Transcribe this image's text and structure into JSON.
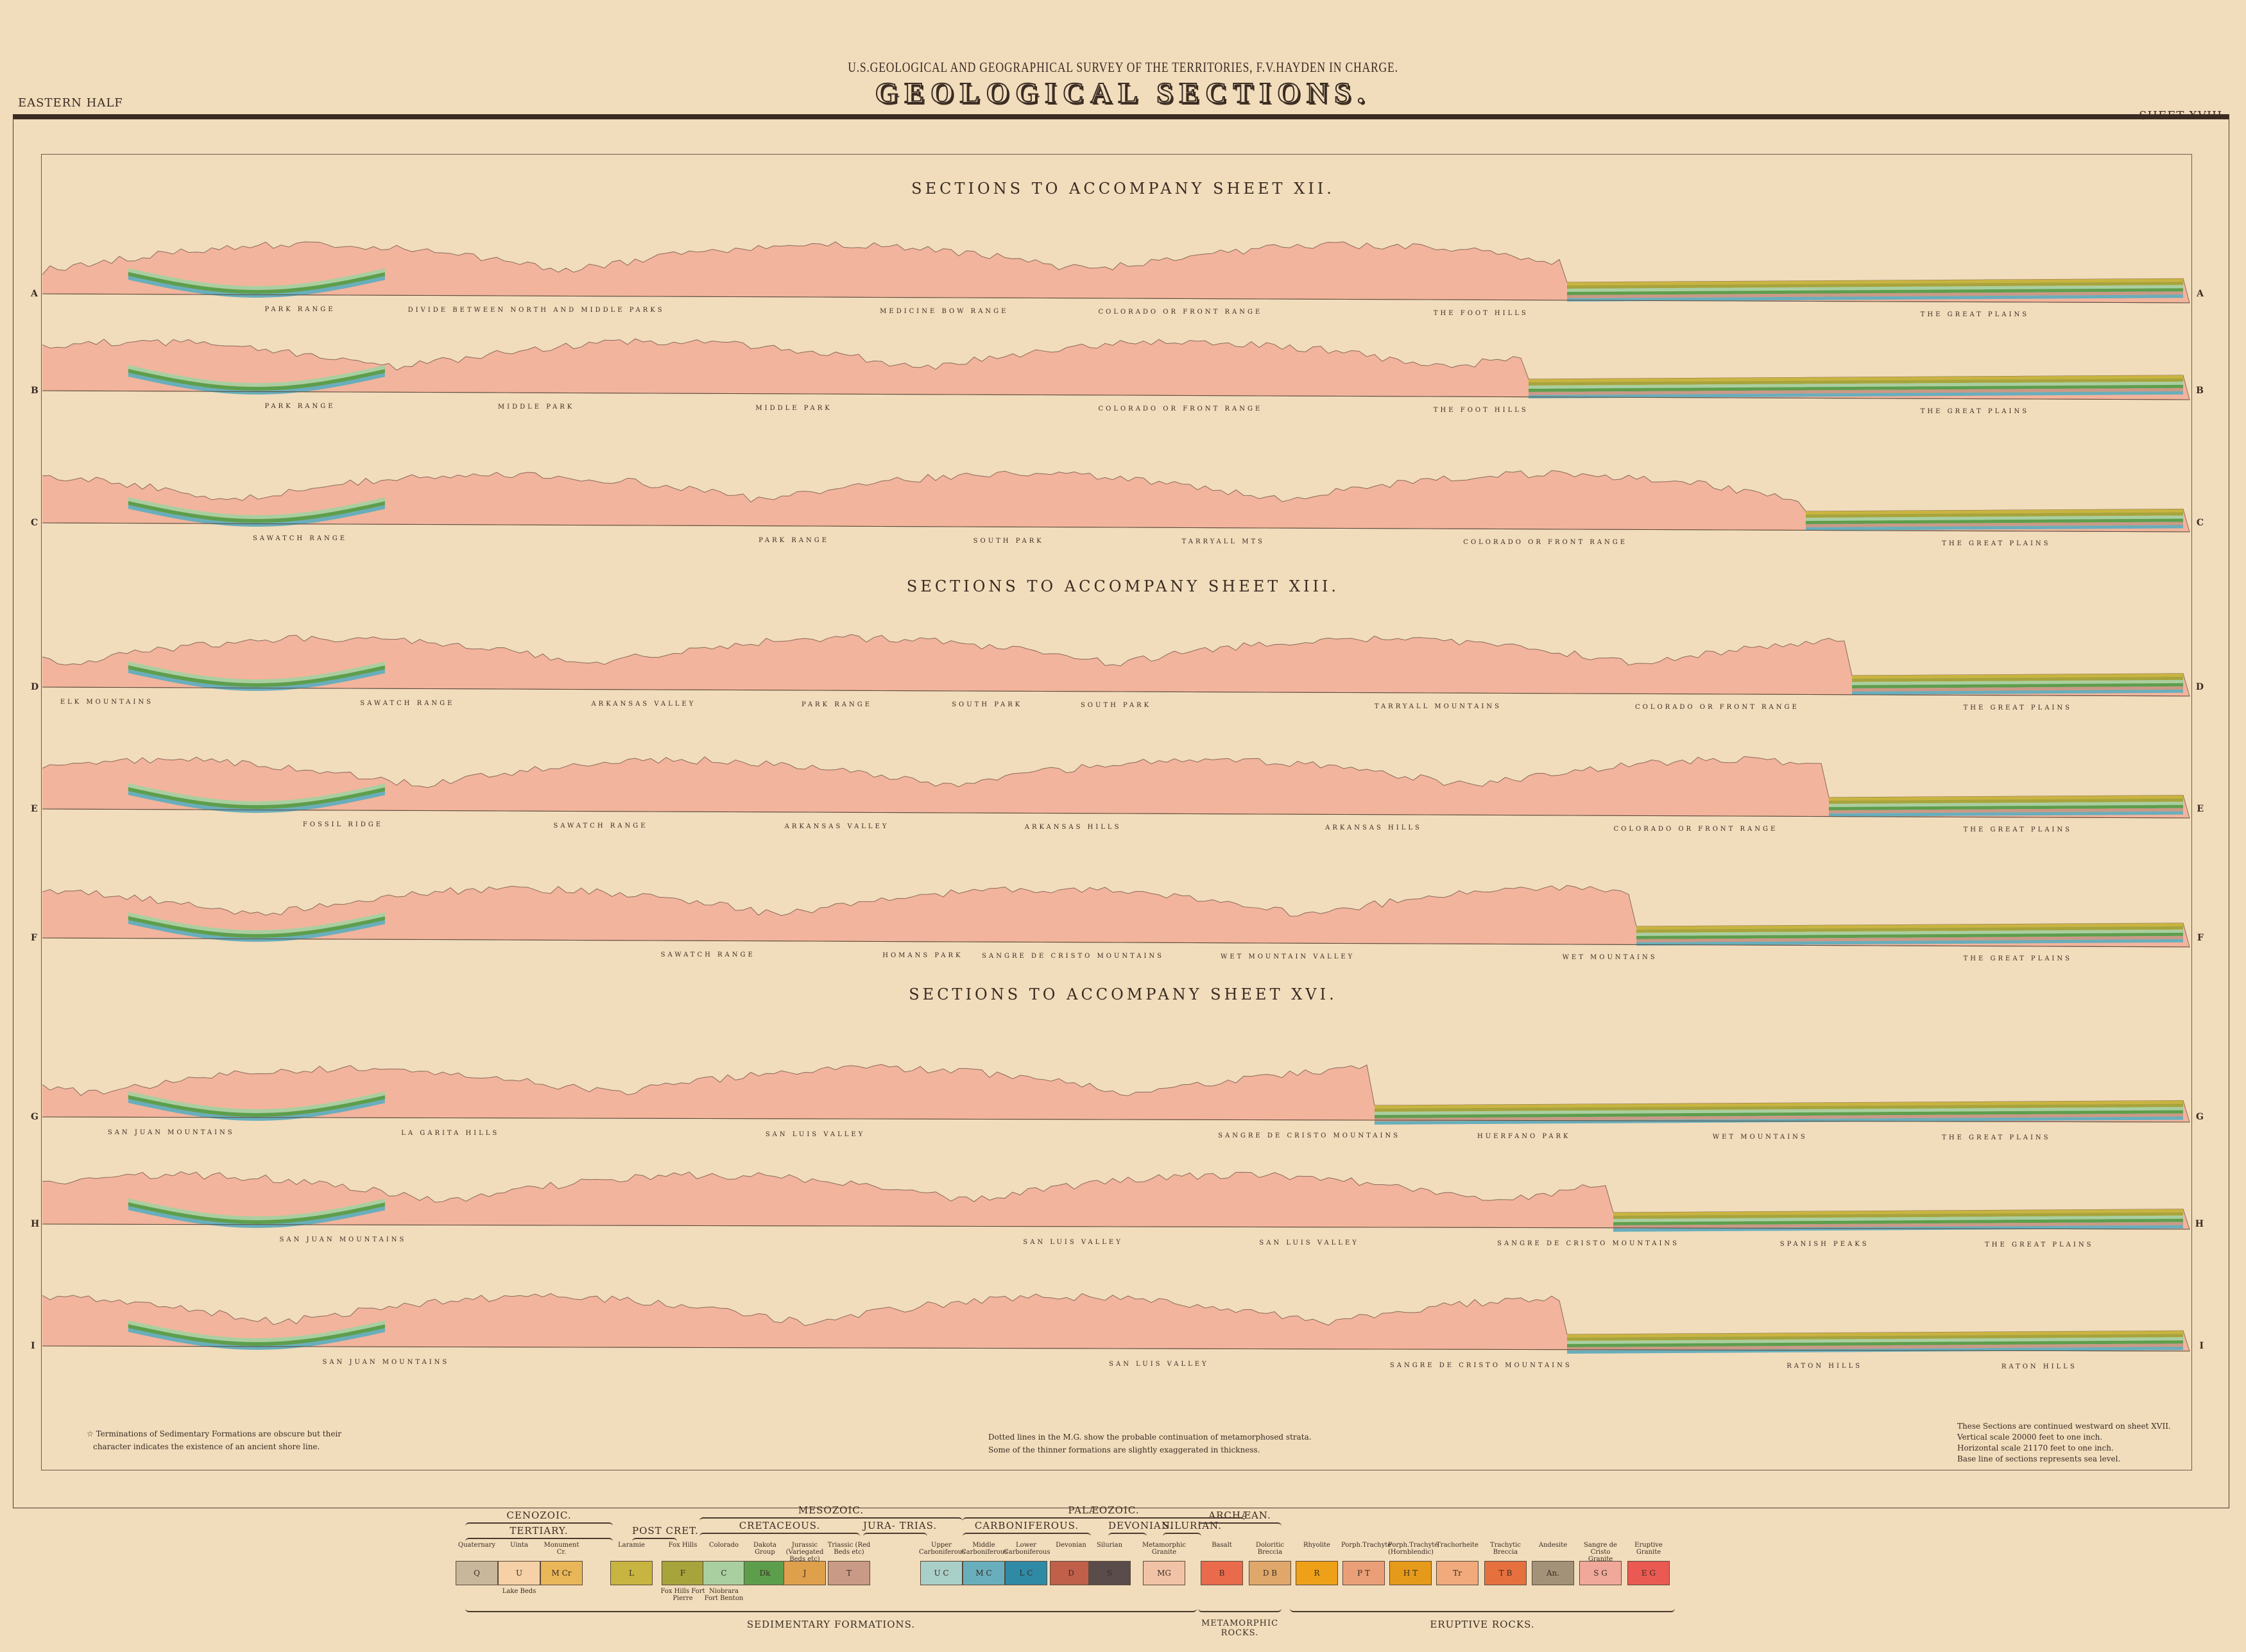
{
  "header": {
    "survey": "U.S.GEOLOGICAL AND GEOGRAPHICAL SURVEY OF THE TERRITORIES, F.V.HAYDEN IN CHARGE.",
    "title": "GEOLOGICAL SECTIONS.",
    "left_corner": "EASTERN HALF",
    "right_corner": "SHEET XVIII."
  },
  "groups": [
    {
      "title": "SECTIONS TO ACCOMPANY SHEET XII."
    },
    {
      "title": "SECTIONS TO ACCOMPANY SHEET XIII."
    },
    {
      "title": "SECTIONS TO ACCOMPANY SHEET XVI."
    }
  ],
  "sections": [
    {
      "letter": "A",
      "ranges": [
        "PARK RANGE",
        "DIVIDE BETWEEN NORTH AND MIDDLE PARKS",
        "MEDICINE BOW RANGE",
        "COLORADO OR FRONT RANGE",
        "THE FOOT HILLS",
        "THE GREAT PLAINS"
      ]
    },
    {
      "letter": "B",
      "ranges": [
        "PARK RANGE",
        "MIDDLE PARK",
        "MIDDLE PARK",
        "COLORADO OR FRONT RANGE",
        "THE FOOT HILLS",
        "THE GREAT PLAINS"
      ]
    },
    {
      "letter": "C",
      "ranges": [
        "SAWATCH RANGE",
        "PARK RANGE",
        "SOUTH PARK",
        "TARRYALL MTS",
        "COLORADO OR FRONT RANGE",
        "THE GREAT PLAINS"
      ]
    },
    {
      "letter": "D",
      "ranges": [
        "ELK MOUNTAINS",
        "SAWATCH RANGE",
        "ARKANSAS VALLEY",
        "PARK RANGE",
        "SOUTH PARK",
        "SOUTH PARK",
        "TARRYALL MOUNTAINS",
        "COLORADO OR FRONT RANGE",
        "THE GREAT PLAINS"
      ]
    },
    {
      "letter": "E",
      "ranges": [
        "FOSSIL RIDGE",
        "SAWATCH RANGE",
        "ARKANSAS VALLEY",
        "ARKANSAS HILLS",
        "ARKANSAS HILLS",
        "COLORADO OR FRONT RANGE",
        "THE GREAT PLAINS"
      ]
    },
    {
      "letter": "F",
      "ranges": [
        "SAWATCH RANGE",
        "HOMANS PARK",
        "SANGRE DE CRISTO MOUNTAINS",
        "WET MOUNTAIN VALLEY",
        "WET MOUNTAINS",
        "THE GREAT PLAINS"
      ]
    },
    {
      "letter": "G",
      "ranges": [
        "SAN JUAN MOUNTAINS",
        "LA GARITA HILLS",
        "SAN LUIS VALLEY",
        "SANGRE DE CRISTO MOUNTAINS",
        "HUERFANO PARK",
        "WET MOUNTAINS",
        "THE GREAT PLAINS"
      ]
    },
    {
      "letter": "H",
      "ranges": [
        "SAN JUAN MOUNTAINS",
        "SAN LUIS VALLEY",
        "SAN LUIS VALLEY",
        "SANGRE DE CRISTO MOUNTAINS",
        "SPANISH PEAKS",
        "THE GREAT PLAINS"
      ]
    },
    {
      "letter": "I",
      "ranges": [
        "SAN JUAN MOUNTAINS",
        "SAN LUIS VALLEY",
        "SANGRE DE CRISTO MOUNTAINS",
        "RATON HILLS",
        "RATON HILLS"
      ]
    }
  ],
  "notes": {
    "left": [
      "☆  Terminations of Sedimentary Formations are obscure but their",
      "character indicates the existence of an ancient shore line."
    ],
    "center": [
      "Dotted lines in the M.G. show the probable continuation of metamorphosed strata.",
      "Some of the thinner formations are slightly exaggerated in thickness."
    ],
    "right": [
      "These Sections are continued westward on sheet XVII.",
      "Vertical scale 20000 feet to one inch.",
      "Horizontal scale 21170 feet to one inch.",
      "Base line of sections represents sea level."
    ]
  },
  "legend": {
    "eras": {
      "cenozoic": "CENOZOIC.",
      "tertiary": "TERTIARY.",
      "post_cret": "POST CRET.",
      "mesozoic": "MESOZOIC.",
      "cretaceous": "CRETACEOUS.",
      "jura_trias": "JURA- TRIAS.",
      "palaeozoic": "PALÆOZOIC.",
      "carboniferous": "CARBONIFEROUS.",
      "devonian": "DEVONIAN.",
      "silurian": "SILURIAN.",
      "archaean": "ARCHÆAN."
    },
    "groups": {
      "sedimentary": "SEDIMENTARY FORMATIONS.",
      "metamorphic": "METAMORPHIC ROCKS.",
      "eruptive": "ERUPTIVE ROCKS."
    },
    "items": [
      {
        "label": "Quaternary",
        "code": "Q",
        "sub": "",
        "color": "#c9b79c"
      },
      {
        "label": "Uinta",
        "code": "U",
        "sub": "Lake Beds",
        "color": "#f6d0a6"
      },
      {
        "label": "Monument Cr.",
        "code": "M Cr",
        "sub": "",
        "color": "#e9b658"
      },
      {
        "label": "Laramie",
        "code": "L",
        "sub": "",
        "color": "#c8b440"
      },
      {
        "label": "Fox Hills",
        "code": "F",
        "sub": "Fox Hills Fort Pierre",
        "color": "#a7a43c"
      },
      {
        "label": "Colorado",
        "code": "C",
        "sub": "Niobrara Fort Benton",
        "color": "#a9cfa0"
      },
      {
        "label": "Dakota Group",
        "code": "Dk",
        "sub": "",
        "color": "#5d9e4d"
      },
      {
        "label": "Jurassic (Variegated Beds etc)",
        "code": "J",
        "sub": "",
        "color": "#dfa04c"
      },
      {
        "label": "Triassic (Red Beds etc)",
        "code": "T",
        "sub": "",
        "color": "#c99a86"
      },
      {
        "label": "Upper Carboniferous",
        "code": "U C",
        "sub": "",
        "color": "#a9cfc9"
      },
      {
        "label": "Middle Carboniferous",
        "code": "M C",
        "sub": "",
        "color": "#68aebc"
      },
      {
        "label": "Lower Carboniferous",
        "code": "L C",
        "sub": "",
        "color": "#2f8aa5"
      },
      {
        "label": "Devonian",
        "code": "D",
        "sub": "",
        "color": "#c0604a"
      },
      {
        "label": "Silurian",
        "code": "S",
        "sub": "",
        "color": "#5a4c4a"
      },
      {
        "label": "Metamorphic Granite",
        "code": "MG",
        "sub": "",
        "color": "#f2c2a6"
      },
      {
        "label": "Basalt",
        "code": "B",
        "sub": "",
        "color": "#ea6a4c"
      },
      {
        "label": "Doloritic Breccia",
        "code": "D B",
        "sub": "",
        "color": "#dfa86a"
      },
      {
        "label": "Rhyolite",
        "code": "R",
        "sub": "",
        "color": "#eea018"
      },
      {
        "label": "Porph.Trachyte",
        "code": "P T",
        "sub": "",
        "color": "#eb9f78"
      },
      {
        "label": "Porph.Trachyte (Hornblendic)",
        "code": "H T",
        "sub": "",
        "color": "#e59a1a"
      },
      {
        "label": "Trachorheite",
        "code": "Tr",
        "sub": "",
        "color": "#f0aa7c"
      },
      {
        "label": "Trachytic Breccia",
        "code": "T B",
        "sub": "",
        "color": "#e6703e"
      },
      {
        "label": "Andesite",
        "code": "An.",
        "sub": "",
        "color": "#a39178"
      },
      {
        "label": "Sangre de Cristo Granite",
        "code": "S G",
        "sub": "",
        "color": "#f0a89a"
      },
      {
        "label": "Eruptive Granite",
        "code": "E G",
        "sub": "",
        "color": "#ea5a52"
      }
    ]
  }
}
